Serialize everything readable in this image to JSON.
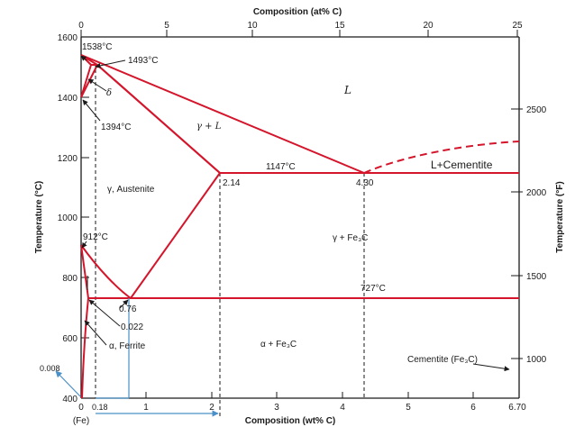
{
  "axes": {
    "top_title": "Composition (at% C)",
    "bottom_title": "Composition (wt% C)",
    "left_title": "Temperature (°C)",
    "right_title": "Temperature (°F)",
    "top_ticks": [
      "0",
      "5",
      "10",
      "15",
      "20",
      "25"
    ],
    "bottom_ticks": [
      "0",
      "1",
      "2",
      "3",
      "4",
      "5",
      "6",
      "6.70"
    ],
    "left_ticks": [
      "1600",
      "1400",
      "1200",
      "1000",
      "800",
      "600",
      "400"
    ],
    "right_ticks": [
      "2500",
      "2000",
      "1500",
      "1000"
    ],
    "fe_label": "(Fe)"
  },
  "annotations": {
    "t1538": "1538°C",
    "t1493": "1493°C",
    "t1394": "1394°C",
    "t1147": "1147°C",
    "t912": "912°C",
    "t727": "727°C",
    "c214": "2.14",
    "c430": "4.30",
    "c076": "0.76",
    "c0022": "0.022",
    "delta": "δ",
    "liquid": "L",
    "gamma_l": "γ + L",
    "austenite": "γ, Austenite",
    "gamma_fe3c": "γ + Fe₃C",
    "ferrite": "α, Ferrite",
    "alpha_fe3c": "α + Fe₃C",
    "cementite": "Cementite (Fe₃C)",
    "l_cementite": "L+Cementite",
    "v0008": "0.008",
    "v018": "0.18"
  }
}
